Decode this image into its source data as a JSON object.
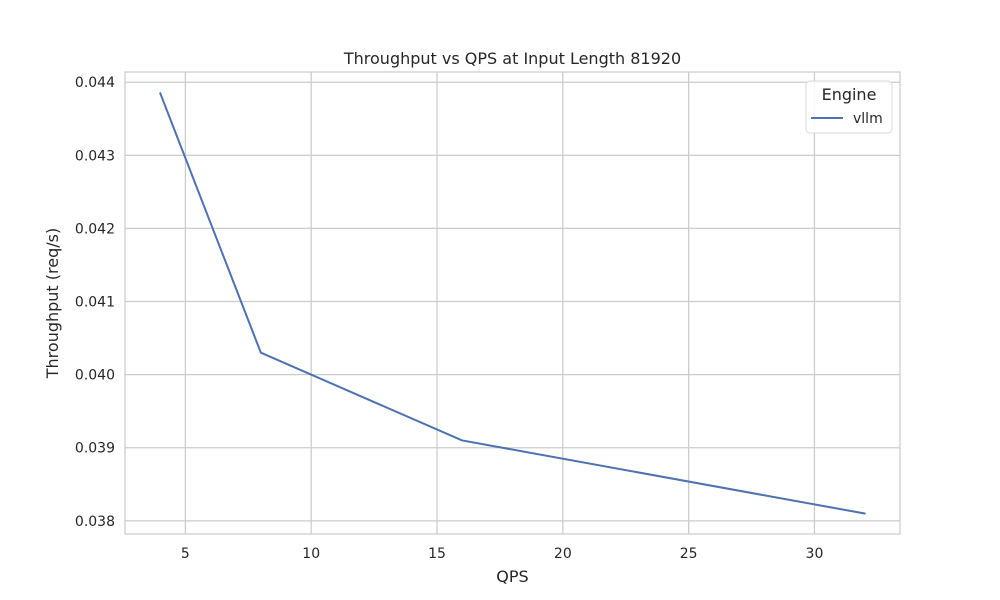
{
  "chart_data": {
    "type": "line",
    "title": "Throughput vs QPS at Input Length 81920",
    "xlabel": "QPS",
    "ylabel": "Throughput (req/s)",
    "xlim": [
      2.6,
      33.4
    ],
    "ylim": [
      0.03782,
      0.04414
    ],
    "xticks": [
      5,
      10,
      15,
      20,
      25,
      30
    ],
    "xtick_labels": [
      "5",
      "10",
      "15",
      "20",
      "25",
      "30"
    ],
    "yticks": [
      0.038,
      0.039,
      0.04,
      0.041,
      0.042,
      0.043,
      0.044
    ],
    "ytick_labels": [
      "0.038",
      "0.039",
      "0.040",
      "0.041",
      "0.042",
      "0.043",
      "0.044"
    ],
    "grid": true,
    "legend": {
      "title": "Engine",
      "placement": "top-right"
    },
    "series": [
      {
        "name": "vllm",
        "color": "#4c72b0",
        "x": [
          4,
          8,
          16,
          32
        ],
        "y": [
          0.04385,
          0.0403,
          0.0391,
          0.0381
        ]
      }
    ]
  }
}
